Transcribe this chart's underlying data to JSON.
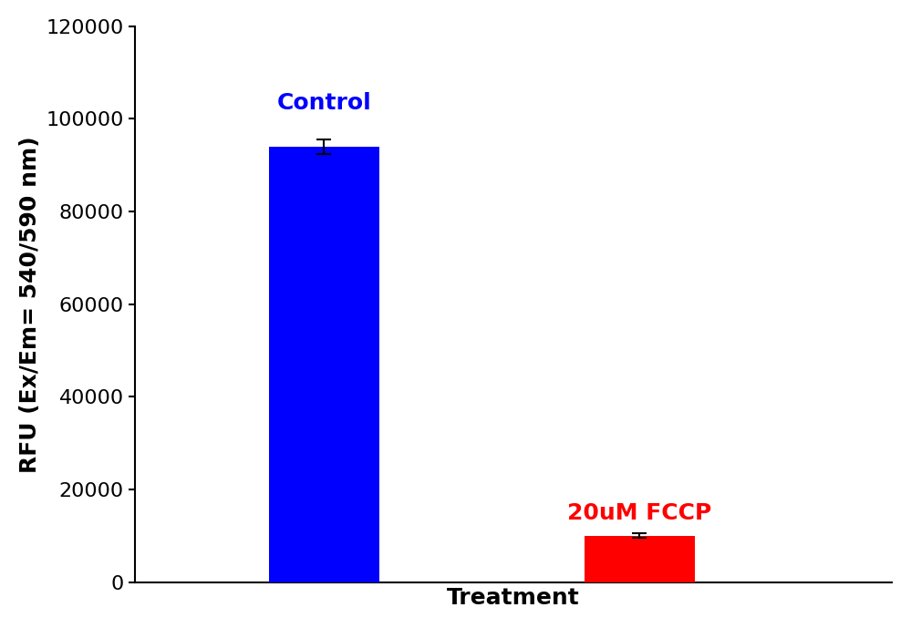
{
  "categories": [
    "Control",
    "20uM FCCP"
  ],
  "values": [
    94000,
    10000
  ],
  "errors": [
    1500,
    500
  ],
  "bar_colors": [
    "#0000FF",
    "#FF0000"
  ],
  "label_colors": [
    "#0000FF",
    "#FF0000"
  ],
  "xlabel": "Treatment",
  "ylabel": "RFU (Ex/Em= 540/590 nm)",
  "ylim": [
    0,
    120000
  ],
  "yticks": [
    0,
    20000,
    40000,
    60000,
    80000,
    100000,
    120000
  ],
  "background_color": "#FFFFFF",
  "tick_fontsize": 16,
  "axis_label_fontsize": 18,
  "annotation_fontsize": 18,
  "bar_width": 0.35,
  "label_offsets": [
    7000,
    2500
  ]
}
